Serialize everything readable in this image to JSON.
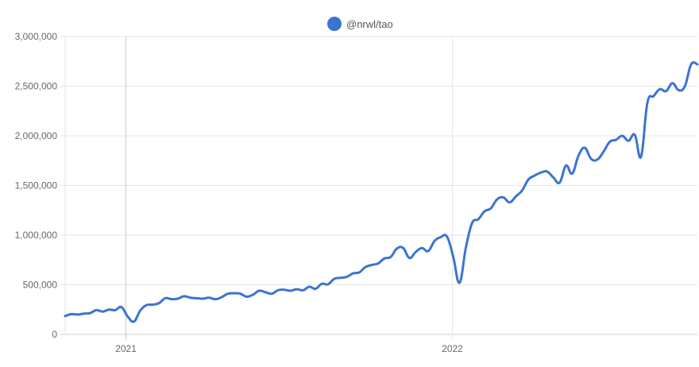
{
  "chart_data": {
    "type": "line",
    "legend": {
      "position": "top-center",
      "items": [
        {
          "label": "@nrwl/tao",
          "color": "#3b74d1"
        }
      ]
    },
    "series": [
      {
        "name": "@nrwl/tao",
        "color": "#3b74d1",
        "points": [
          [
            "2020-10-25",
            185000
          ],
          [
            "2020-11-01",
            205000
          ],
          [
            "2020-11-08",
            200000
          ],
          [
            "2020-11-15",
            210000
          ],
          [
            "2020-11-22",
            215000
          ],
          [
            "2020-11-29",
            245000
          ],
          [
            "2020-12-06",
            230000
          ],
          [
            "2020-12-13",
            250000
          ],
          [
            "2020-12-20",
            245000
          ],
          [
            "2020-12-27",
            275000
          ],
          [
            "2021-01-03",
            180000
          ],
          [
            "2021-01-10",
            130000
          ],
          [
            "2021-01-17",
            240000
          ],
          [
            "2021-01-24",
            295000
          ],
          [
            "2021-01-31",
            300000
          ],
          [
            "2021-02-07",
            315000
          ],
          [
            "2021-02-14",
            365000
          ],
          [
            "2021-02-21",
            355000
          ],
          [
            "2021-02-28",
            360000
          ],
          [
            "2021-03-07",
            385000
          ],
          [
            "2021-03-14",
            370000
          ],
          [
            "2021-03-21",
            365000
          ],
          [
            "2021-03-28",
            360000
          ],
          [
            "2021-04-04",
            370000
          ],
          [
            "2021-04-11",
            355000
          ],
          [
            "2021-04-18",
            375000
          ],
          [
            "2021-04-25",
            410000
          ],
          [
            "2021-05-02",
            415000
          ],
          [
            "2021-05-09",
            410000
          ],
          [
            "2021-05-16",
            380000
          ],
          [
            "2021-05-23",
            400000
          ],
          [
            "2021-05-30",
            440000
          ],
          [
            "2021-06-06",
            425000
          ],
          [
            "2021-06-13",
            410000
          ],
          [
            "2021-06-20",
            445000
          ],
          [
            "2021-06-27",
            450000
          ],
          [
            "2021-07-04",
            440000
          ],
          [
            "2021-07-11",
            455000
          ],
          [
            "2021-07-18",
            445000
          ],
          [
            "2021-07-25",
            480000
          ],
          [
            "2021-08-01",
            460000
          ],
          [
            "2021-08-08",
            510000
          ],
          [
            "2021-08-15",
            505000
          ],
          [
            "2021-08-22",
            560000
          ],
          [
            "2021-08-29",
            570000
          ],
          [
            "2021-09-05",
            580000
          ],
          [
            "2021-09-12",
            615000
          ],
          [
            "2021-09-19",
            625000
          ],
          [
            "2021-09-26",
            680000
          ],
          [
            "2021-10-03",
            700000
          ],
          [
            "2021-10-10",
            715000
          ],
          [
            "2021-10-17",
            765000
          ],
          [
            "2021-10-24",
            780000
          ],
          [
            "2021-10-31",
            865000
          ],
          [
            "2021-11-07",
            870000
          ],
          [
            "2021-11-14",
            770000
          ],
          [
            "2021-11-21",
            830000
          ],
          [
            "2021-11-28",
            870000
          ],
          [
            "2021-12-05",
            840000
          ],
          [
            "2021-12-12",
            940000
          ],
          [
            "2021-12-19",
            980000
          ],
          [
            "2021-12-26",
            985000
          ],
          [
            "2022-01-02",
            780000
          ],
          [
            "2022-01-09",
            520000
          ],
          [
            "2022-01-16",
            870000
          ],
          [
            "2022-01-23",
            1120000
          ],
          [
            "2022-01-30",
            1160000
          ],
          [
            "2022-02-06",
            1240000
          ],
          [
            "2022-02-13",
            1270000
          ],
          [
            "2022-02-20",
            1360000
          ],
          [
            "2022-02-27",
            1380000
          ],
          [
            "2022-03-06",
            1330000
          ],
          [
            "2022-03-13",
            1390000
          ],
          [
            "2022-03-20",
            1450000
          ],
          [
            "2022-03-27",
            1560000
          ],
          [
            "2022-04-03",
            1600000
          ],
          [
            "2022-04-10",
            1630000
          ],
          [
            "2022-04-17",
            1640000
          ],
          [
            "2022-04-24",
            1580000
          ],
          [
            "2022-05-01",
            1530000
          ],
          [
            "2022-05-08",
            1700000
          ],
          [
            "2022-05-15",
            1620000
          ],
          [
            "2022-05-22",
            1800000
          ],
          [
            "2022-05-29",
            1880000
          ],
          [
            "2022-06-05",
            1770000
          ],
          [
            "2022-06-12",
            1760000
          ],
          [
            "2022-06-19",
            1840000
          ],
          [
            "2022-06-26",
            1940000
          ],
          [
            "2022-07-03",
            1960000
          ],
          [
            "2022-07-10",
            2000000
          ],
          [
            "2022-07-17",
            1950000
          ],
          [
            "2022-07-24",
            2010000
          ],
          [
            "2022-07-31",
            1790000
          ],
          [
            "2022-08-07",
            2330000
          ],
          [
            "2022-08-14",
            2400000
          ],
          [
            "2022-08-21",
            2470000
          ],
          [
            "2022-08-28",
            2450000
          ],
          [
            "2022-09-04",
            2530000
          ],
          [
            "2022-09-11",
            2460000
          ],
          [
            "2022-09-18",
            2500000
          ],
          [
            "2022-09-25",
            2720000
          ],
          [
            "2022-10-02",
            2720000
          ]
        ]
      }
    ],
    "x_axis": {
      "scale": "time",
      "range": [
        "2020-10-25",
        "2022-10-02"
      ],
      "ticks": [
        {
          "date": "2021-01-01",
          "label": "2021"
        },
        {
          "date": "2022-01-01",
          "label": "2022"
        }
      ],
      "grid": true
    },
    "y_axis": {
      "range": [
        0,
        3000000
      ],
      "ticks": [
        {
          "value": 0,
          "label": "0"
        },
        {
          "value": 500000,
          "label": "500,000"
        },
        {
          "value": 1000000,
          "label": "1,000,000"
        },
        {
          "value": 1500000,
          "label": "1,500,000"
        },
        {
          "value": 2000000,
          "label": "2,000,000"
        },
        {
          "value": 2500000,
          "label": "2,500,000"
        },
        {
          "value": 3000000,
          "label": "3,000,000"
        }
      ],
      "grid": true
    }
  }
}
